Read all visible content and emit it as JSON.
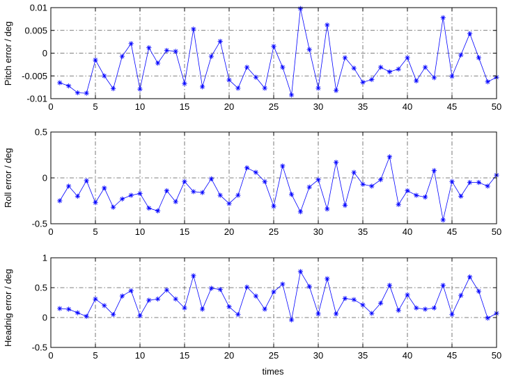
{
  "figure": {
    "xlabel": "times"
  },
  "chart_data": [
    {
      "type": "line",
      "ylabel": "Pitch error / deg",
      "xlim": [
        0,
        50
      ],
      "ylim": [
        -0.01,
        0.01
      ],
      "xticks": [
        0,
        5,
        10,
        15,
        20,
        25,
        30,
        35,
        40,
        45,
        50
      ],
      "xtick_labels": [
        "0",
        "5",
        "10",
        "15",
        "20",
        "25",
        "30",
        "35",
        "40",
        "45",
        "50"
      ],
      "yticks": [
        -0.01,
        -0.005,
        0,
        0.005,
        0.01
      ],
      "ytick_labels": [
        "-0.01",
        "-0.005",
        "0",
        "0.005",
        "0.01"
      ],
      "grid": true,
      "color": "#0000ff",
      "marker": "asterisk",
      "x": [
        1,
        2,
        3,
        4,
        5,
        6,
        7,
        8,
        9,
        10,
        11,
        12,
        13,
        14,
        15,
        16,
        17,
        18,
        19,
        20,
        21,
        22,
        23,
        24,
        25,
        26,
        27,
        28,
        29,
        30,
        31,
        32,
        33,
        34,
        35,
        36,
        37,
        38,
        39,
        40,
        41,
        42,
        43,
        44,
        45,
        46,
        47,
        48,
        49,
        50
      ],
      "values": [
        -0.0065,
        -0.0072,
        -0.0087,
        -0.0088,
        -0.0015,
        -0.005,
        -0.0078,
        -0.0007,
        0.0021,
        -0.0079,
        0.0012,
        -0.0022,
        0.0006,
        0.0004,
        -0.0067,
        0.0053,
        -0.0074,
        -0.0007,
        0.0026,
        -0.0059,
        -0.0077,
        -0.0031,
        -0.0053,
        -0.0077,
        0.0015,
        -0.0031,
        -0.0092,
        0.0098,
        0.0008,
        -0.0077,
        0.0062,
        -0.0082,
        -0.001,
        -0.0033,
        -0.0064,
        -0.0058,
        -0.0031,
        -0.0041,
        -0.0035,
        -0.001,
        -0.0061,
        -0.0031,
        -0.0054,
        0.0078,
        -0.0051,
        -0.0004,
        0.0043,
        -0.001,
        -0.0063,
        -0.0053
      ]
    },
    {
      "type": "line",
      "ylabel": "Roll error / deg",
      "xlim": [
        0,
        50
      ],
      "ylim": [
        -0.5,
        0.5
      ],
      "xticks": [
        0,
        5,
        10,
        15,
        20,
        25,
        30,
        35,
        40,
        45,
        50
      ],
      "xtick_labels": [
        "0",
        "5",
        "10",
        "15",
        "20",
        "25",
        "30",
        "35",
        "40",
        "45",
        "50"
      ],
      "yticks": [
        -0.5,
        0,
        0.5
      ],
      "ytick_labels": [
        "-0.5",
        "0",
        "0.5"
      ],
      "grid": true,
      "color": "#0000ff",
      "marker": "asterisk",
      "x": [
        1,
        2,
        3,
        4,
        5,
        6,
        7,
        8,
        9,
        10,
        11,
        12,
        13,
        14,
        15,
        16,
        17,
        18,
        19,
        20,
        21,
        22,
        23,
        24,
        25,
        26,
        27,
        28,
        29,
        30,
        31,
        32,
        33,
        34,
        35,
        36,
        37,
        38,
        39,
        40,
        41,
        42,
        43,
        44,
        45,
        46,
        47,
        48,
        49,
        50
      ],
      "values": [
        -0.25,
        -0.09,
        -0.2,
        -0.03,
        -0.27,
        -0.11,
        -0.32,
        -0.23,
        -0.19,
        -0.17,
        -0.33,
        -0.36,
        -0.14,
        -0.26,
        -0.04,
        -0.15,
        -0.16,
        -0.01,
        -0.19,
        -0.28,
        -0.19,
        0.11,
        0.06,
        -0.04,
        -0.31,
        0.13,
        -0.18,
        -0.37,
        -0.1,
        -0.02,
        -0.34,
        0.17,
        -0.3,
        0.06,
        -0.07,
        -0.09,
        -0.02,
        0.23,
        -0.29,
        -0.14,
        -0.19,
        -0.21,
        0.08,
        -0.46,
        -0.04,
        -0.2,
        -0.05,
        -0.05,
        -0.09,
        0.03
      ]
    },
    {
      "type": "line",
      "ylabel": "Headnig error / deg",
      "xlim": [
        0,
        50
      ],
      "ylim": [
        -0.5,
        1
      ],
      "xticks": [
        0,
        5,
        10,
        15,
        20,
        25,
        30,
        35,
        40,
        45,
        50
      ],
      "xtick_labels": [
        "0",
        "5",
        "10",
        "15",
        "20",
        "25",
        "30",
        "35",
        "40",
        "45",
        "50"
      ],
      "yticks": [
        -0.5,
        0,
        0.5,
        1
      ],
      "ytick_labels": [
        "-0.5",
        "0",
        "0.5",
        "1"
      ],
      "grid": true,
      "color": "#0000ff",
      "marker": "asterisk",
      "x": [
        1,
        2,
        3,
        4,
        5,
        6,
        7,
        8,
        9,
        10,
        11,
        12,
        13,
        14,
        15,
        16,
        17,
        18,
        19,
        20,
        21,
        22,
        23,
        24,
        25,
        26,
        27,
        28,
        29,
        30,
        31,
        32,
        33,
        34,
        35,
        36,
        37,
        38,
        39,
        40,
        41,
        42,
        43,
        44,
        45,
        46,
        47,
        48,
        49,
        50
      ],
      "values": [
        0.15,
        0.14,
        0.08,
        0.02,
        0.31,
        0.2,
        0.05,
        0.36,
        0.45,
        0.03,
        0.29,
        0.31,
        0.46,
        0.31,
        0.16,
        0.7,
        0.14,
        0.49,
        0.47,
        0.18,
        0.05,
        0.51,
        0.36,
        0.14,
        0.43,
        0.56,
        -0.04,
        0.77,
        0.52,
        0.06,
        0.65,
        0.06,
        0.32,
        0.3,
        0.21,
        0.07,
        0.24,
        0.54,
        0.12,
        0.38,
        0.16,
        0.14,
        0.16,
        0.54,
        0.05,
        0.37,
        0.68,
        0.44,
        -0.01,
        0.07
      ]
    }
  ]
}
